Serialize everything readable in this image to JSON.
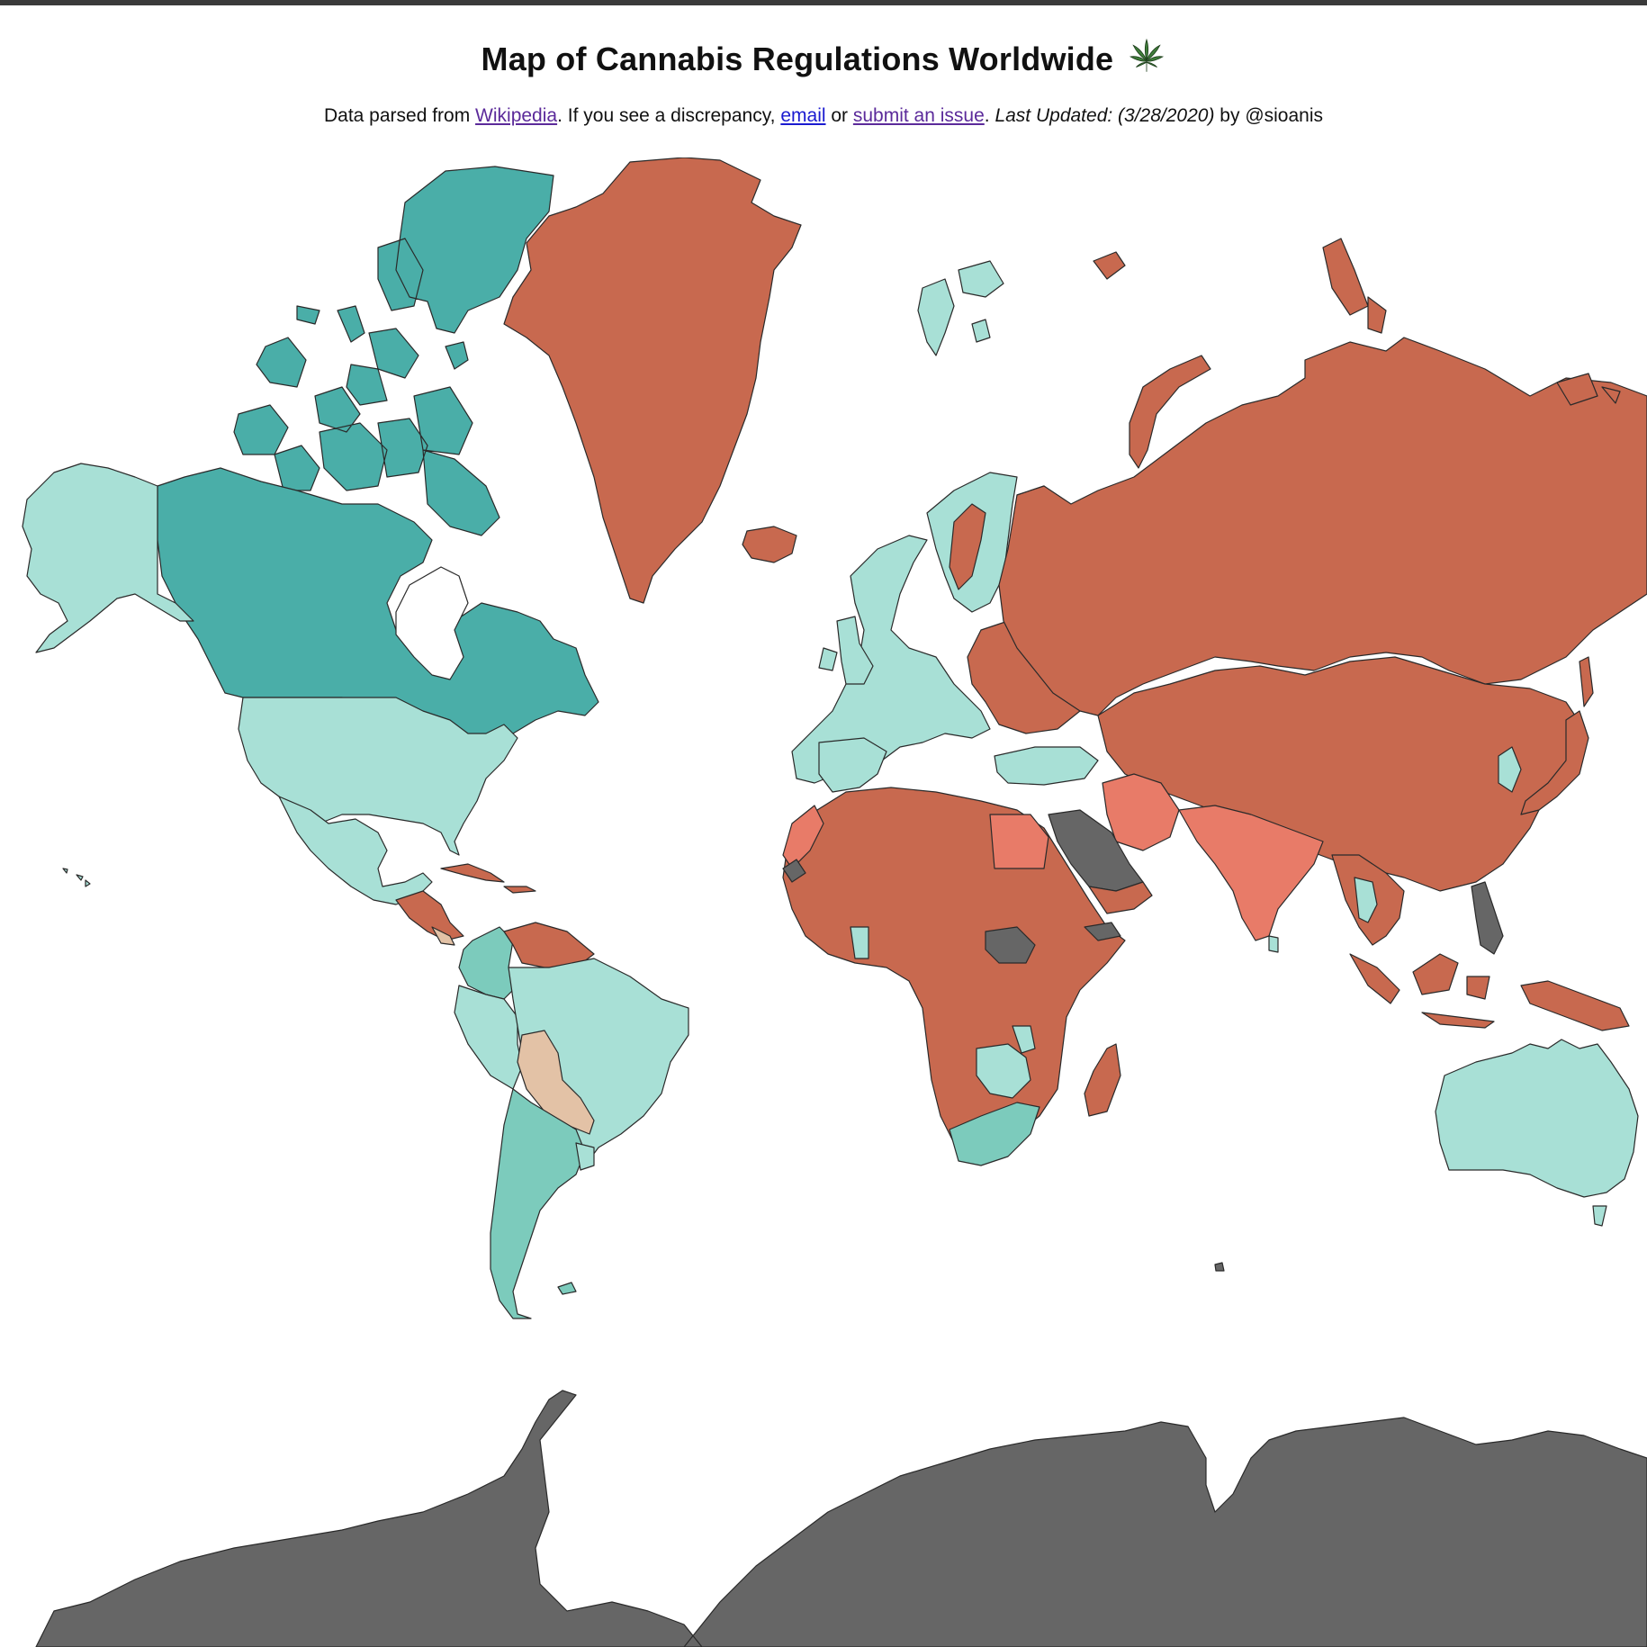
{
  "header": {
    "title": "Map of Cannabis Regulations Worldwide",
    "subtitle": {
      "prefix": "Data parsed from ",
      "wikipedia_link": "Wikipedia",
      "middle": ". If you see a discrepancy, ",
      "email_link": "email",
      "or": " or ",
      "issue_link": "submit an issue",
      "dot": ". ",
      "last_updated": "Last Updated: (3/28/2020)",
      "by": " by @sioanis"
    }
  },
  "colors": {
    "legal": "#4aaea8",
    "decriminalized": "#a8e0d6",
    "medical": "#7ccbbc",
    "illegal": "#c8694f",
    "illegal_strict": "#e87b68",
    "unenforced": "#e3c2a6",
    "no_data": "#666666",
    "background": "#ffffff"
  },
  "icons": {
    "title_icon": "cannabis-leaf-icon"
  }
}
